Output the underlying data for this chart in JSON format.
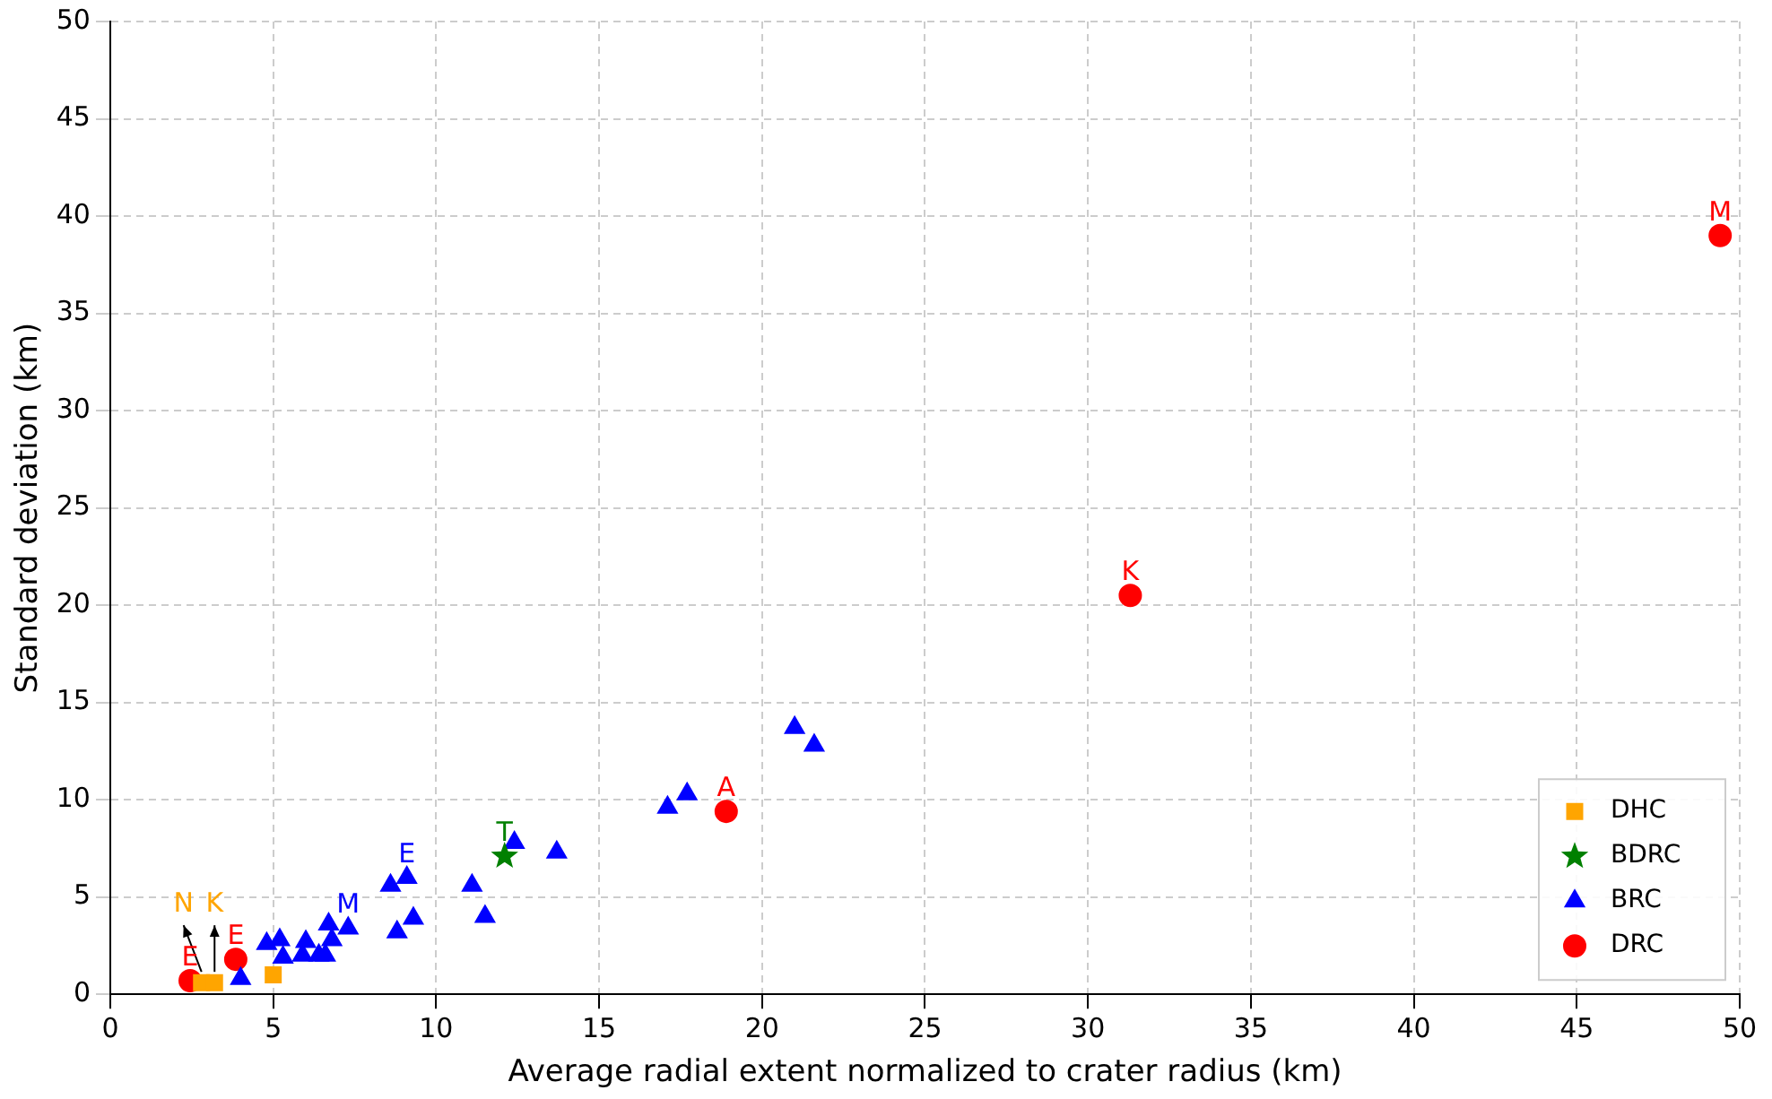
{
  "chart_data": {
    "type": "scatter",
    "xlabel": "Average radial extent normalized to crater radius (km)",
    "ylabel": "Standard deviation (km)",
    "xlim": [
      0,
      50
    ],
    "ylim": [
      0,
      50
    ],
    "xticks": [
      0,
      5,
      10,
      15,
      20,
      25,
      30,
      35,
      40,
      45,
      50
    ],
    "yticks": [
      0,
      5,
      10,
      15,
      20,
      25,
      30,
      35,
      40,
      45,
      50
    ],
    "grid": true,
    "legend": "bottom right",
    "series": [
      {
        "name": "DHC",
        "color": "#ffa500",
        "marker": "square",
        "x": [
          2.8,
          3.2,
          5.0
        ],
        "values": [
          0.6,
          0.6,
          1.0
        ]
      },
      {
        "name": "BDRC",
        "color": "#008000",
        "marker": "star",
        "x": [
          12.1
        ],
        "values": [
          7.1
        ]
      },
      {
        "name": "BRC",
        "color": "#0000ff",
        "marker": "triangle",
        "x": [
          4.0,
          4.8,
          5.2,
          5.3,
          5.9,
          6.0,
          6.4,
          6.6,
          6.7,
          6.8,
          7.3,
          8.6,
          9.1,
          8.8,
          9.3,
          11.1,
          11.5,
          12.4,
          13.7,
          17.1,
          17.7,
          21.0,
          21.6
        ],
        "values": [
          0.8,
          2.6,
          2.8,
          1.9,
          2.0,
          2.7,
          2.0,
          2.0,
          3.6,
          2.8,
          3.4,
          5.6,
          6.0,
          3.2,
          3.9,
          5.6,
          4.0,
          7.8,
          7.3,
          9.6,
          10.3,
          13.7,
          12.8
        ]
      },
      {
        "name": "DRC",
        "color": "#ff0000",
        "marker": "circle",
        "x": [
          2.45,
          3.85,
          18.9,
          31.3,
          49.4
        ],
        "values": [
          0.7,
          1.8,
          9.4,
          20.5,
          39.0
        ]
      }
    ],
    "annotations": [
      {
        "text": "N",
        "x": 2.8,
        "y": 0.6
      },
      {
        "text": "K",
        "x": 3.2,
        "y": 0.6
      },
      {
        "text": "E",
        "x": 2.45,
        "y": 0.7
      },
      {
        "text": "E",
        "x": 3.85,
        "y": 1.8
      },
      {
        "text": "M",
        "x": 7.3,
        "y": 3.4
      },
      {
        "text": "E",
        "x": 9.1,
        "y": 6.0
      },
      {
        "text": "T",
        "x": 12.1,
        "y": 7.1
      },
      {
        "text": "A",
        "x": 18.9,
        "y": 9.4
      },
      {
        "text": "K",
        "x": 31.3,
        "y": 20.5
      },
      {
        "text": "M",
        "x": 49.4,
        "y": 39.0
      }
    ]
  }
}
